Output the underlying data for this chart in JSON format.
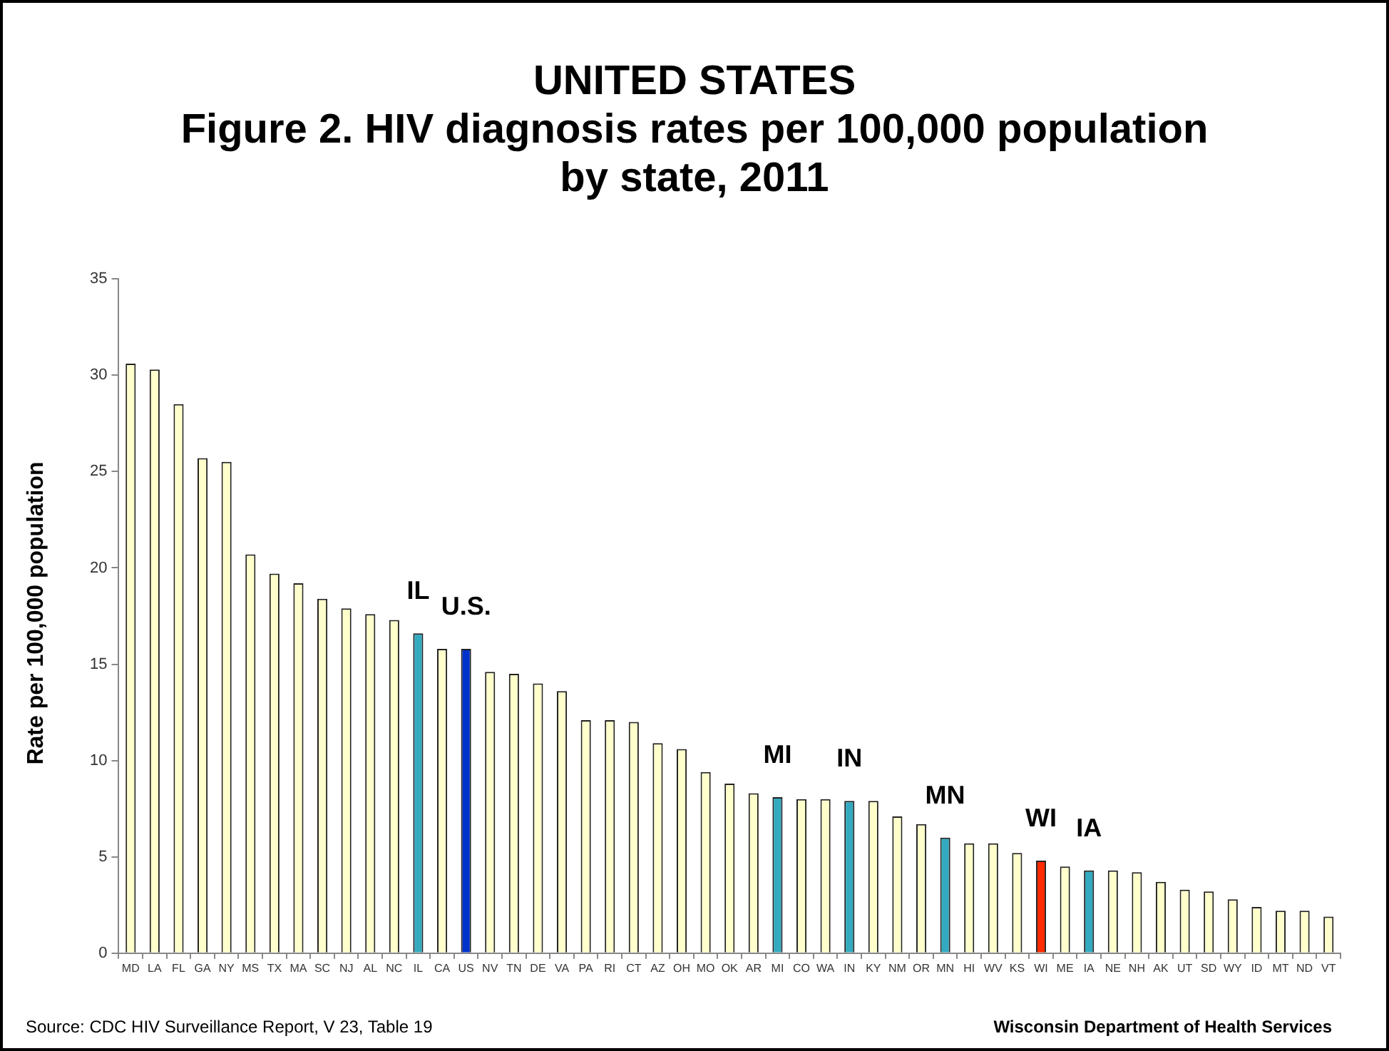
{
  "chart_data": {
    "type": "bar",
    "title": "UNITED STATES\nFigure 2. HIV diagnosis rates per 100,000 population\nby state, 2011",
    "ylabel": "Rate per 100,000 population",
    "categories": [
      "MD",
      "LA",
      "FL",
      "GA",
      "NY",
      "MS",
      "TX",
      "MA",
      "SC",
      "NJ",
      "AL",
      "NC",
      "IL",
      "CA",
      "US",
      "NV",
      "TN",
      "DE",
      "VA",
      "PA",
      "RI",
      "CT",
      "AZ",
      "OH",
      "MO",
      "OK",
      "AR",
      "MI",
      "CO",
      "WA",
      "IN",
      "KY",
      "NM",
      "OR",
      "MN",
      "HI",
      "WV",
      "KS",
      "WI",
      "ME",
      "IA",
      "NE",
      "NH",
      "AK",
      "UT",
      "SD",
      "WY",
      "ID",
      "MT",
      "ND",
      "VT"
    ],
    "values": [
      30.6,
      30.3,
      28.5,
      25.7,
      25.5,
      20.7,
      19.7,
      19.2,
      18.4,
      17.9,
      17.6,
      17.3,
      16.6,
      15.8,
      15.8,
      14.6,
      14.5,
      14.0,
      13.6,
      12.1,
      12.1,
      12.0,
      10.9,
      10.6,
      9.4,
      8.8,
      8.3,
      8.1,
      8.0,
      8.0,
      7.9,
      7.9,
      7.1,
      6.7,
      6.0,
      5.7,
      5.7,
      5.2,
      4.8,
      4.5,
      4.3,
      4.3,
      4.2,
      3.7,
      3.3,
      3.2,
      2.8,
      2.4,
      2.2,
      2.2,
      1.9
    ],
    "colors": [
      "#ffffcc",
      "#ffffcc",
      "#ffffcc",
      "#ffffcc",
      "#ffffcc",
      "#ffffcc",
      "#ffffcc",
      "#ffffcc",
      "#ffffcc",
      "#ffffcc",
      "#ffffcc",
      "#ffffcc",
      "#33aabf",
      "#ffffcc",
      "#0033cc",
      "#ffffcc",
      "#ffffcc",
      "#ffffcc",
      "#ffffcc",
      "#ffffcc",
      "#ffffcc",
      "#ffffcc",
      "#ffffcc",
      "#ffffcc",
      "#ffffcc",
      "#ffffcc",
      "#ffffcc",
      "#33aabf",
      "#ffffcc",
      "#ffffcc",
      "#33aabf",
      "#ffffcc",
      "#ffffcc",
      "#ffffcc",
      "#33aabf",
      "#ffffcc",
      "#ffffcc",
      "#ffffcc",
      "#ff2a00",
      "#ffffcc",
      "#33aabf",
      "#ffffcc",
      "#ffffcc",
      "#ffffcc",
      "#ffffcc",
      "#ffffcc",
      "#ffffcc",
      "#ffffcc",
      "#ffffcc",
      "#ffffcc",
      "#ffffcc"
    ],
    "ylim": [
      0,
      35
    ],
    "yticks": [
      0,
      5,
      10,
      15,
      20,
      25,
      30,
      35
    ],
    "grid": false,
    "legend": false,
    "annotations": [
      {
        "text": "IL",
        "x": "IL",
        "y": 16.6
      },
      {
        "text": "U.S.",
        "x": "US",
        "y": 15.8
      },
      {
        "text": "MI",
        "x": "MI",
        "y": 8.1
      },
      {
        "text": "IN",
        "x": "IN",
        "y": 7.9
      },
      {
        "text": "MN",
        "x": "MN",
        "y": 6.0
      },
      {
        "text": "WI",
        "x": "WI",
        "y": 4.8
      },
      {
        "text": "IA",
        "x": "IA",
        "y": 4.3
      },
      "Source: CDC HIV Surveillance Report, V 23, Table 19",
      "Wisconsin Department of Health Services"
    ]
  }
}
